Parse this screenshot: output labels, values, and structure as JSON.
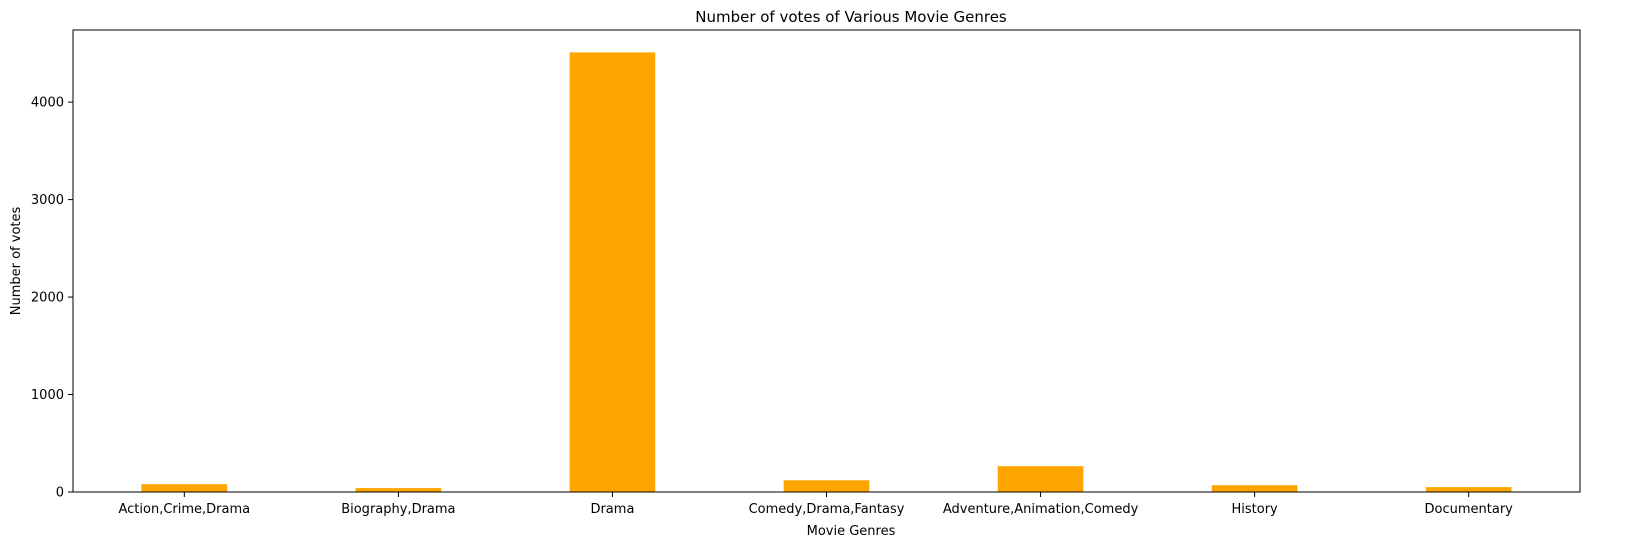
{
  "chart_data": {
    "type": "bar",
    "title": "Number of votes of Various Movie Genres",
    "xlabel": "Movie Genres",
    "ylabel": "Number of votes",
    "categories": [
      "Action,Crime,Drama",
      "Biography,Drama",
      "Drama",
      "Comedy,Drama,Fantasy",
      "Adventure,Animation,Comedy",
      "History",
      "Documentary"
    ],
    "values": [
      80,
      40,
      4510,
      120,
      265,
      70,
      50
    ],
    "ylim": [
      0,
      4740
    ],
    "yticks": [
      0,
      1000,
      2000,
      3000,
      4000
    ],
    "ytick_labels": [
      "0",
      "1000",
      "2000",
      "3000",
      "4000"
    ],
    "bar_color": "#FFA500",
    "grid": false
  }
}
